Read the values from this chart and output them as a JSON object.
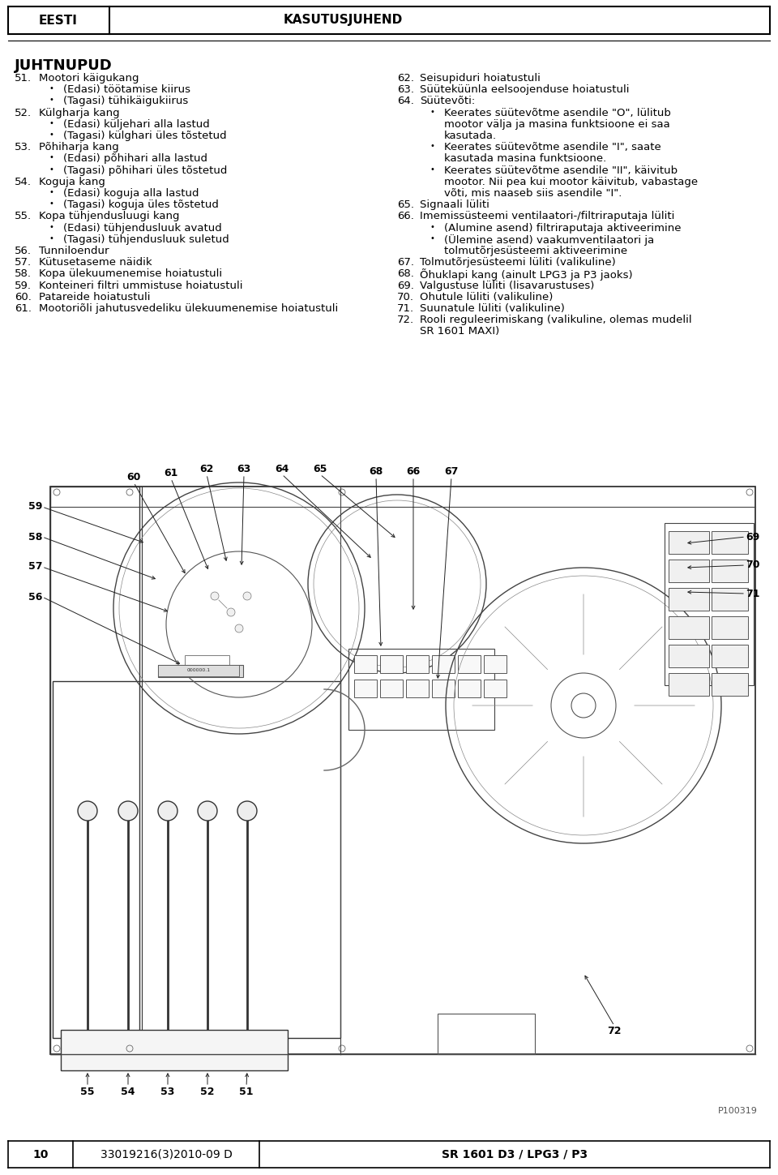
{
  "page_title_left": "EESTI",
  "page_title_right": "KASUTUSJUHEND",
  "section_title": "JUHTNUPUD",
  "bg_color": "#ffffff",
  "text_color": "#000000",
  "left_col_items": [
    {
      "num": "51.",
      "text": "Mootori käigukang",
      "bullets": [
        "(Edasi) töötamise kiirus",
        "(Tagasi) tühikäigukiirus"
      ]
    },
    {
      "num": "52.",
      "text": "Külgharja kang",
      "bullets": [
        "(Edasi) küljehari alla lastud",
        "(Tagasi) külghari üles tõstetud"
      ]
    },
    {
      "num": "53.",
      "text": "Põhiharja kang",
      "bullets": [
        "(Edasi) põhihari alla lastud",
        "(Tagasi) põhihari üles tõstetud"
      ]
    },
    {
      "num": "54.",
      "text": "Koguja kang",
      "bullets": [
        "(Edasi) koguja alla lastud",
        "(Tagasi) koguja üles tõstetud"
      ]
    },
    {
      "num": "55.",
      "text": "Kopa tühjendusluugi kang",
      "bullets": [
        "(Edasi) tühjendusluuk avatud",
        "(Tagasi) tühjendusluuk suletud"
      ]
    },
    {
      "num": "56.",
      "text": "Tunniloendur",
      "bullets": []
    },
    {
      "num": "57.",
      "text": "Kütusetaseme näidik",
      "bullets": []
    },
    {
      "num": "58.",
      "text": "Kopa ülekuumenemise hoiatustuli",
      "bullets": []
    },
    {
      "num": "59.",
      "text": "Konteineri filtri ummistuse hoiatustuli",
      "bullets": []
    },
    {
      "num": "60.",
      "text": "Patareide hoiatustuli",
      "bullets": []
    },
    {
      "num": "61.",
      "text": "Mootoriõli jahutusvedeliku ülekuumenemise hoiatustuli",
      "bullets": []
    }
  ],
  "right_col_items": [
    {
      "num": "62.",
      "text": "Seisupiduri hoiatustuli",
      "bullets": []
    },
    {
      "num": "63.",
      "text": "Süüteküünla eelsoojenduse hoiatustuli",
      "bullets": []
    },
    {
      "num": "64.",
      "text": "Süütevõti:",
      "bullets": [
        "Keerates süütevõtme asendile \"O\", lülitub mootor välja ja masina funktsioone ei saa kasutada.",
        "Keerates süütevõtme asendile \"I\", saate kasutada masina funktsioone.",
        "Keerates süütevõtme asendile \"II\", käivitub mootor. Nii pea kui mootor käivitub, vabastage võti, mis naaseb siis asendile \"I\"."
      ]
    },
    {
      "num": "65.",
      "text": "Signaali lüliti",
      "bullets": []
    },
    {
      "num": "66.",
      "text": "Imemissüsteemi ventilaatori-/filtriraputaja lüliti",
      "bullets": [
        "(Alumine asend) filtriraputaja aktiveerimine",
        "(Ülemine asend) vaakumventilaatori ja tolmutõrjesüsteemi aktiveerimine"
      ]
    },
    {
      "num": "67.",
      "text": "Tolmutõrjesüsteemi lüliti (valikuline)",
      "bullets": []
    },
    {
      "num": "68.",
      "text": "Õhuklapi kang (ainult LPG3 ja P3 jaoks)",
      "bullets": []
    },
    {
      "num": "69.",
      "text": "Valgustuse lüliti (lisavarustuses)",
      "bullets": []
    },
    {
      "num": "70.",
      "text": "Ohutule lüliti (valikuline)",
      "bullets": []
    },
    {
      "num": "71.",
      "text": "Suunatule lüliti (valikuline)",
      "bullets": []
    },
    {
      "num": "72.",
      "text": "Rooli reguleerimiskang (valikuline, olemas mudelil SR 1601 MAXI)",
      "bullets": []
    }
  ],
  "footer_page": "10",
  "footer_doc": "33019216(3)2010-09 D",
  "footer_model": "SR 1601 D3 / LPG3 / P3",
  "page_num_right": "P100319",
  "diagram_labels_top": [
    [
      163,
      596,
      "60"
    ],
    [
      209,
      590,
      "61"
    ],
    [
      253,
      585,
      "62"
    ],
    [
      299,
      585,
      "63"
    ],
    [
      348,
      585,
      "64"
    ],
    [
      394,
      585,
      "65"
    ],
    [
      463,
      588,
      "68"
    ],
    [
      508,
      588,
      "66"
    ],
    [
      555,
      588,
      "67"
    ]
  ],
  "diagram_labels_left": [
    [
      55,
      627,
      "59"
    ],
    [
      55,
      665,
      "58"
    ],
    [
      55,
      703,
      "57"
    ],
    [
      55,
      740,
      "56"
    ]
  ],
  "diagram_labels_right": [
    [
      920,
      665,
      "69"
    ],
    [
      920,
      700,
      "70"
    ],
    [
      920,
      735,
      "71"
    ]
  ],
  "diagram_label_72": [
    755,
    1270,
    "72"
  ],
  "diagram_labels_bottom": [
    [
      108,
      1340,
      "55"
    ],
    [
      158,
      1340,
      "54"
    ],
    [
      207,
      1340,
      "53"
    ],
    [
      256,
      1340,
      "52"
    ],
    [
      304,
      1340,
      "51"
    ]
  ]
}
